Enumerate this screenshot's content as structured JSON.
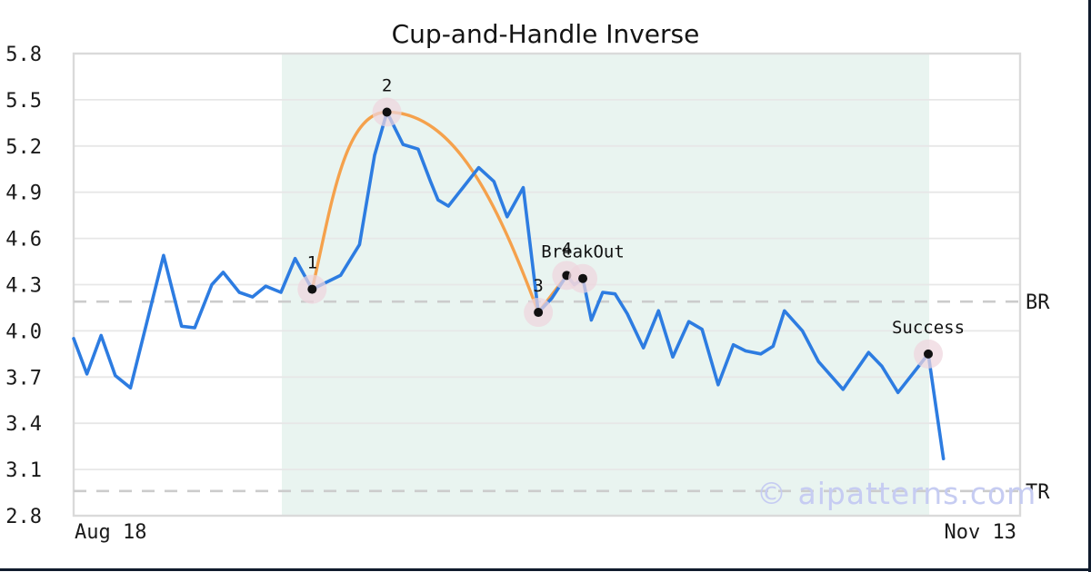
{
  "title": "Cup-and-Handle Inverse",
  "watermark": "© aipatterns.com",
  "colors": {
    "price_line": "#2d7ce1",
    "pattern_line": "#f5a14c",
    "marker_halo": "#eed6de",
    "marker_dot": "#111111",
    "shaded_region": "#e9f4f0",
    "level_dash": "#cccccc",
    "gridline": "#e7e7e7",
    "frame_border": "#dadada",
    "tick_text": "#1a1a1a",
    "watermark_text": "#c6ccf2",
    "edge_bar": "#101b2d"
  },
  "chart_data": {
    "type": "line",
    "title": "Cup-and-Handle Inverse",
    "xlabel": "",
    "ylabel": "",
    "x_axis": {
      "start_label": "Aug 18",
      "end_label": "Nov 13"
    },
    "y_axis": {
      "min": 2.8,
      "max": 5.8,
      "ticks": [
        5.8,
        5.5,
        5.2,
        4.9,
        4.6,
        4.3,
        4.0,
        3.7,
        3.4,
        3.1,
        2.8
      ]
    },
    "grid": "horizontal-only",
    "legend": "none",
    "shaded_region": {
      "x_start": 0.22,
      "x_end": 0.904
    },
    "levels": [
      {
        "label": "BR",
        "value": 4.19
      },
      {
        "label": "TR",
        "value": 2.96
      }
    ],
    "series": [
      {
        "name": "price",
        "points": [
          [
            0.0,
            3.95
          ],
          [
            0.014,
            3.72
          ],
          [
            0.029,
            3.97
          ],
          [
            0.044,
            3.71
          ],
          [
            0.06,
            3.63
          ],
          [
            0.095,
            4.49
          ],
          [
            0.114,
            4.03
          ],
          [
            0.128,
            4.02
          ],
          [
            0.146,
            4.3
          ],
          [
            0.158,
            4.38
          ],
          [
            0.175,
            4.25
          ],
          [
            0.189,
            4.22
          ],
          [
            0.203,
            4.29
          ],
          [
            0.219,
            4.25
          ],
          [
            0.234,
            4.47
          ],
          [
            0.252,
            4.27
          ],
          [
            0.282,
            4.36
          ],
          [
            0.302,
            4.56
          ],
          [
            0.318,
            5.14
          ],
          [
            0.331,
            5.42
          ],
          [
            0.348,
            5.21
          ],
          [
            0.364,
            5.18
          ],
          [
            0.377,
            4.97
          ],
          [
            0.385,
            4.85
          ],
          [
            0.396,
            4.81
          ],
          [
            0.428,
            5.06
          ],
          [
            0.444,
            4.97
          ],
          [
            0.458,
            4.74
          ],
          [
            0.475,
            4.93
          ],
          [
            0.491,
            4.12
          ],
          [
            0.505,
            4.21
          ],
          [
            0.521,
            4.36
          ],
          [
            0.529,
            4.3
          ],
          [
            0.538,
            4.34
          ],
          [
            0.547,
            4.07
          ],
          [
            0.559,
            4.25
          ],
          [
            0.572,
            4.24
          ],
          [
            0.585,
            4.11
          ],
          [
            0.602,
            3.89
          ],
          [
            0.618,
            4.13
          ],
          [
            0.633,
            3.83
          ],
          [
            0.65,
            4.06
          ],
          [
            0.664,
            4.01
          ],
          [
            0.681,
            3.65
          ],
          [
            0.697,
            3.91
          ],
          [
            0.71,
            3.87
          ],
          [
            0.726,
            3.85
          ],
          [
            0.739,
            3.9
          ],
          [
            0.751,
            4.13
          ],
          [
            0.77,
            4.0
          ],
          [
            0.787,
            3.8
          ],
          [
            0.813,
            3.62
          ],
          [
            0.84,
            3.86
          ],
          [
            0.854,
            3.77
          ],
          [
            0.871,
            3.6
          ],
          [
            0.903,
            3.85
          ],
          [
            0.919,
            3.17
          ]
        ]
      },
      {
        "name": "pattern-overlay",
        "anchors": [
          [
            0.252,
            4.27
          ],
          [
            0.331,
            5.42
          ],
          [
            0.491,
            4.12
          ],
          [
            0.521,
            4.36
          ]
        ]
      }
    ],
    "markers": [
      {
        "label": "1",
        "x": 0.252,
        "y": 4.27
      },
      {
        "label": "2",
        "x": 0.331,
        "y": 5.42
      },
      {
        "label": "3",
        "x": 0.491,
        "y": 4.12
      },
      {
        "label": "4",
        "x": 0.521,
        "y": 4.36
      },
      {
        "label": "BreakOut",
        "x": 0.538,
        "y": 4.34
      },
      {
        "label": "Success",
        "x": 0.903,
        "y": 3.85
      }
    ]
  }
}
